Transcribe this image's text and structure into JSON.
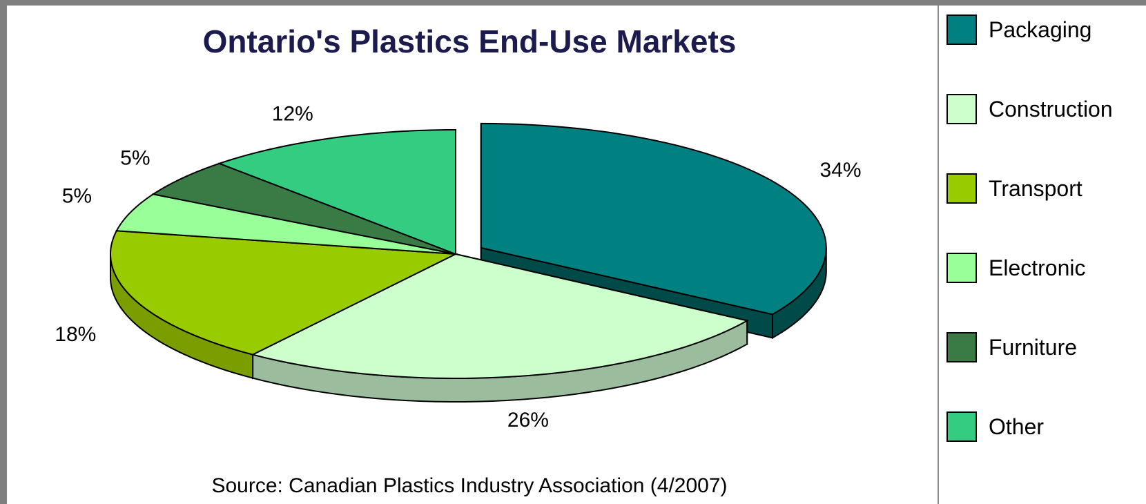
{
  "chart_data": {
    "type": "pie",
    "title": "Ontario's Plastics End-Use Markets",
    "source": "Source: Canadian Plastics Industry Association (4/2007)",
    "exploded": "Packaging",
    "legend_position": "right",
    "slices": [
      {
        "name": "Packaging",
        "value": 34,
        "label": "34%",
        "color": "#008080",
        "side_color": "#004a4a"
      },
      {
        "name": "Construction",
        "value": 26,
        "label": "26%",
        "color": "#ccffcc",
        "side_color": "#9bbd9d"
      },
      {
        "name": "Transport",
        "value": 18,
        "label": "18%",
        "color": "#99cc00",
        "side_color": "#7a9e00"
      },
      {
        "name": "Electronic",
        "value": 5,
        "label": "5%",
        "color": "#99ff99",
        "side_color": "#72c472"
      },
      {
        "name": "Furniture",
        "value": 5,
        "label": "5%",
        "color": "#3a7a44",
        "side_color": "#28562f"
      },
      {
        "name": "Other",
        "value": 12,
        "label": "12%",
        "color": "#33cc80",
        "side_color": "#22995e"
      }
    ]
  }
}
